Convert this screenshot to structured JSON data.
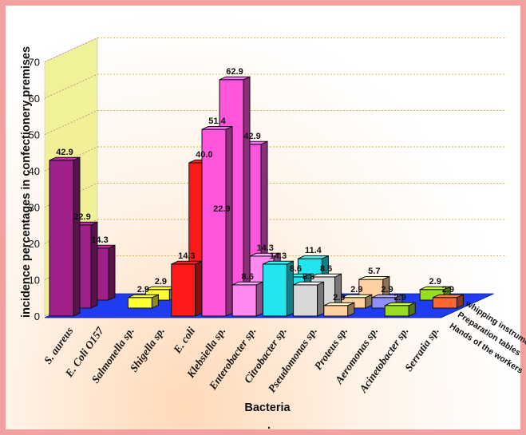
{
  "chart_data": {
    "type": "bar",
    "title": "",
    "ylabel": "incidence percentages in confectionery premises",
    "xlabel": "Bacteria",
    "footnote": ".",
    "ylim": [
      0,
      70
    ],
    "yticks": [
      "0",
      "10",
      "20",
      "30",
      "40",
      "50",
      "60",
      "70"
    ],
    "grid": true,
    "categories": [
      "S. aureus",
      "E. Coli O157",
      "Salmonella sp.",
      "Shigella sp.",
      "E. coli",
      "Klebsiella sp.",
      "Enterobacter sp.",
      "Citrobacter sp.",
      "Pseudomonas sp.",
      "Proteus sp.",
      "Aeromonas sp.",
      "Acinetobacter sp.",
      "Serratia sp."
    ],
    "series": [
      {
        "name": "Hands of the workers",
        "values": [
          42.9,
          0,
          0,
          0,
          14.3,
          51.4,
          8.6,
          14.3,
          8.6,
          2.9,
          0,
          2.9,
          0
        ]
      },
      {
        "name": "Preparation tables",
        "values": [
          22.9,
          0,
          2.9,
          0,
          40.0,
          62.9,
          14.3,
          8.6,
          8.6,
          2.9,
          2.9,
          0,
          2.9
        ]
      },
      {
        "name": "whipping instruments",
        "values": [
          14.3,
          0,
          2.9,
          0,
          22.9,
          42.9,
          0,
          11.4,
          0,
          5.7,
          0,
          2.9,
          0
        ]
      }
    ],
    "colors": {
      "S. aureus": "#a0208a",
      "E. Coli O157": "#d72ab8",
      "Salmonella sp.": "#ffff33",
      "Shigella sp.": "#33cc33",
      "E. coli": "#ff1a1a",
      "Klebsiella sp.": "#ff55dd",
      "Enterobacter sp.": "#ff88ee",
      "Citrobacter sp.": "#22e5ef",
      "Pseudomonas sp.": "#d8d8d8",
      "Proteus sp.": "#ffd0a0",
      "Aeromonas sp.": "#8f8fff",
      "Acinetobacter sp.": "#99dd22",
      "Serratia sp.": "#ff6633"
    },
    "floor_color": "#1f3cf0",
    "wall_color": "#eeee88"
  }
}
